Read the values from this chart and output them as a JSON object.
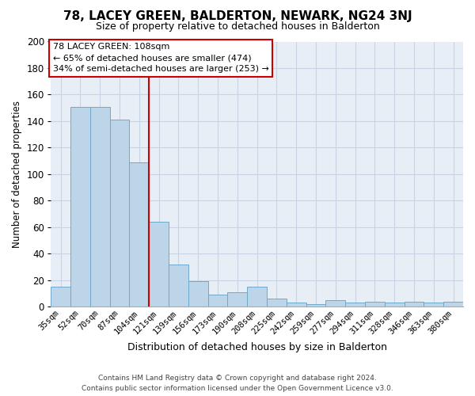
{
  "title": "78, LACEY GREEN, BALDERTON, NEWARK, NG24 3NJ",
  "subtitle": "Size of property relative to detached houses in Balderton",
  "xlabel": "Distribution of detached houses by size in Balderton",
  "ylabel": "Number of detached properties",
  "bar_labels": [
    "35sqm",
    "52sqm",
    "70sqm",
    "87sqm",
    "104sqm",
    "121sqm",
    "139sqm",
    "156sqm",
    "173sqm",
    "190sqm",
    "208sqm",
    "225sqm",
    "242sqm",
    "259sqm",
    "277sqm",
    "294sqm",
    "311sqm",
    "328sqm",
    "346sqm",
    "363sqm",
    "380sqm"
  ],
  "bar_values": [
    15,
    151,
    151,
    141,
    109,
    64,
    32,
    19,
    9,
    11,
    15,
    6,
    3,
    2,
    5,
    3,
    4,
    3,
    4,
    3,
    4
  ],
  "bar_color": "#bdd5e8",
  "bar_edge_color": "#6fa8cc",
  "marker_color": "#cc0000",
  "marker_index": 5,
  "ylim": [
    0,
    200
  ],
  "yticks": [
    0,
    20,
    40,
    60,
    80,
    100,
    120,
    140,
    160,
    180,
    200
  ],
  "annotation_title": "78 LACEY GREEN: 108sqm",
  "annotation_line1": "← 65% of detached houses are smaller (474)",
  "annotation_line2": "34% of semi-detached houses are larger (253) →",
  "footer_line1": "Contains HM Land Registry data © Crown copyright and database right 2024.",
  "footer_line2": "Contains public sector information licensed under the Open Government Licence v3.0.",
  "bg_color": "#ffffff",
  "plot_bg_color": "#e8eef6",
  "grid_color": "#c8d4e4"
}
